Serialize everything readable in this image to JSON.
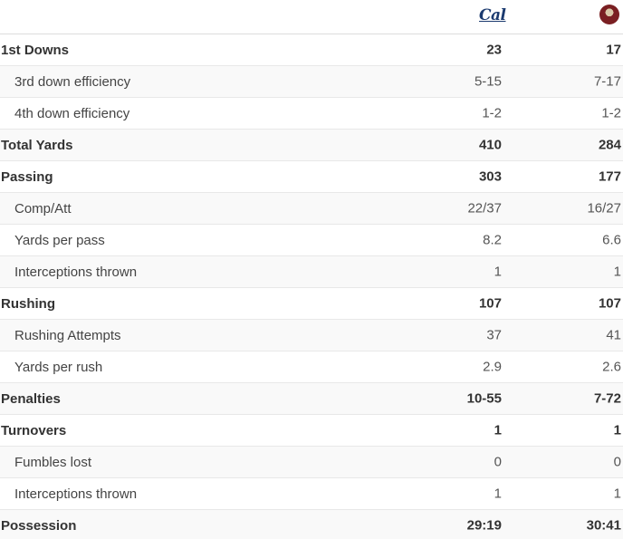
{
  "teams": {
    "team_a": {
      "logo_icon": "cal-logo-icon",
      "logo_text": "Cal",
      "color": "#1b3a6f"
    },
    "team_b": {
      "logo_icon": "fsu-seminoles-logo-icon",
      "color": "#7a1f22"
    }
  },
  "rows": [
    {
      "label": "1st Downs",
      "a": "23",
      "b": "17",
      "level": "main"
    },
    {
      "label": "3rd down efficiency",
      "a": "5-15",
      "b": "7-17",
      "level": "sub"
    },
    {
      "label": "4th down efficiency",
      "a": "1-2",
      "b": "1-2",
      "level": "sub"
    },
    {
      "label": "Total Yards",
      "a": "410",
      "b": "284",
      "level": "main"
    },
    {
      "label": "Passing",
      "a": "303",
      "b": "177",
      "level": "main"
    },
    {
      "label": "Comp/Att",
      "a": "22/37",
      "b": "16/27",
      "level": "sub"
    },
    {
      "label": "Yards per pass",
      "a": "8.2",
      "b": "6.6",
      "level": "sub"
    },
    {
      "label": "Interceptions thrown",
      "a": "1",
      "b": "1",
      "level": "sub"
    },
    {
      "label": "Rushing",
      "a": "107",
      "b": "107",
      "level": "main"
    },
    {
      "label": "Rushing Attempts",
      "a": "37",
      "b": "41",
      "level": "sub"
    },
    {
      "label": "Yards per rush",
      "a": "2.9",
      "b": "2.6",
      "level": "sub"
    },
    {
      "label": "Penalties",
      "a": "10-55",
      "b": "7-72",
      "level": "main"
    },
    {
      "label": "Turnovers",
      "a": "1",
      "b": "1",
      "level": "main"
    },
    {
      "label": "Fumbles lost",
      "a": "0",
      "b": "0",
      "level": "sub"
    },
    {
      "label": "Interceptions thrown",
      "a": "1",
      "b": "1",
      "level": "sub"
    },
    {
      "label": "Possession",
      "a": "29:19",
      "b": "30:41",
      "level": "main"
    }
  ]
}
